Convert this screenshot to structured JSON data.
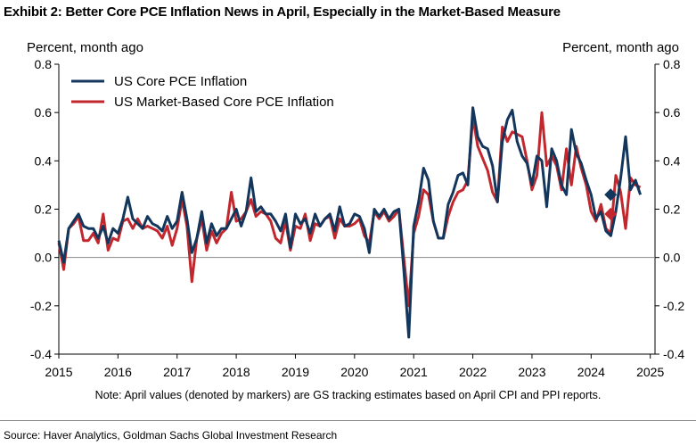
{
  "title": "Exhibit 2: Better Core PCE Inflation News in April, Especially in the Market-Based Measure",
  "note": "Note: April values (denoted by markers) are GS tracking estimates based on April CPI and PPI reports.",
  "source": "Source: Haver Analytics, Goldman Sachs Global Investment Research",
  "chart_data": {
    "type": "line",
    "y_axis_left_label": "Percent, month ago",
    "y_axis_right_label": "Percent, month ago",
    "ylim": [
      -0.4,
      0.8
    ],
    "yticks": [
      "0.8",
      "0.6",
      "0.4",
      "0.2",
      "0.0",
      "-0.2",
      "-0.4"
    ],
    "xlim": [
      2015,
      2025.08
    ],
    "xticks": [
      "2015",
      "2016",
      "2017",
      "2018",
      "2019",
      "2020",
      "2021",
      "2022",
      "2023",
      "2024",
      "2025"
    ],
    "grid": false,
    "legend_position": "top-left",
    "series": [
      {
        "name": "US Core PCE Inflation",
        "color": "#13365c",
        "x_start": 2015.0,
        "step_years": 0.08333,
        "values": [
          0.07,
          -0.02,
          0.12,
          0.15,
          0.18,
          0.13,
          0.12,
          0.12,
          0.08,
          0.13,
          0.06,
          0.12,
          0.1,
          0.16,
          0.25,
          0.16,
          0.14,
          0.12,
          0.17,
          0.14,
          0.13,
          0.11,
          0.17,
          0.12,
          0.15,
          0.27,
          0.16,
          0.02,
          0.08,
          0.19,
          0.06,
          0.14,
          0.09,
          0.12,
          0.12,
          0.16,
          0.2,
          0.13,
          0.19,
          0.33,
          0.19,
          0.21,
          0.18,
          0.18,
          0.15,
          0.11,
          0.18,
          0.04,
          0.18,
          0.14,
          0.16,
          0.1,
          0.18,
          0.13,
          0.16,
          0.18,
          0.11,
          0.21,
          0.13,
          0.14,
          0.18,
          0.17,
          0.12,
          0.02,
          0.2,
          0.17,
          0.2,
          0.16,
          0.19,
          0.2,
          -0.05,
          -0.33,
          0.13,
          0.23,
          0.37,
          0.32,
          0.15,
          0.08,
          0.08,
          0.22,
          0.27,
          0.34,
          0.35,
          0.3,
          0.62,
          0.5,
          0.46,
          0.45,
          0.38,
          0.23,
          0.48,
          0.57,
          0.61,
          0.48,
          0.42,
          0.39,
          0.3,
          0.42,
          0.4,
          0.21,
          0.45,
          0.4,
          0.3,
          0.26,
          0.53,
          0.43,
          0.39,
          0.32,
          0.26,
          0.16,
          0.19,
          0.11,
          0.09,
          0.19,
          0.33,
          0.5,
          0.28,
          0.32,
          0.26
        ],
        "markers": [
          {
            "x": 2024.33,
            "y": 0.26
          }
        ]
      },
      {
        "name": "US Market-Based Core PCE Inflation",
        "color": "#c1272d",
        "x_start": 2015.0,
        "step_years": 0.08333,
        "values": [
          0.06,
          -0.05,
          0.12,
          0.14,
          0.17,
          0.07,
          0.07,
          0.1,
          0.06,
          0.18,
          0.03,
          0.08,
          0.07,
          0.15,
          0.16,
          0.12,
          0.16,
          0.12,
          0.13,
          0.12,
          0.11,
          0.08,
          0.13,
          0.05,
          0.12,
          0.24,
          0.13,
          -0.1,
          0.08,
          0.16,
          0.03,
          0.11,
          0.06,
          0.1,
          0.12,
          0.27,
          0.15,
          0.16,
          0.19,
          0.24,
          0.17,
          0.19,
          0.18,
          0.15,
          0.08,
          0.06,
          0.15,
          0.03,
          0.13,
          0.12,
          0.18,
          0.07,
          0.14,
          0.13,
          0.16,
          0.17,
          0.08,
          0.16,
          0.13,
          0.13,
          0.14,
          0.16,
          0.09,
          0.06,
          0.19,
          0.16,
          0.19,
          0.15,
          0.17,
          0.2,
          0.0,
          -0.2,
          0.1,
          0.17,
          0.28,
          0.26,
          0.15,
          0.08,
          0.08,
          0.17,
          0.23,
          0.27,
          0.28,
          0.32,
          0.58,
          0.46,
          0.41,
          0.36,
          0.27,
          0.23,
          0.54,
          0.48,
          0.52,
          0.51,
          0.5,
          0.4,
          0.28,
          0.34,
          0.6,
          0.38,
          0.42,
          0.38,
          0.28,
          0.45,
          0.3,
          0.46,
          0.37,
          0.3,
          0.19,
          0.15,
          0.22,
          0.12,
          0.1,
          0.34,
          0.27,
          0.12,
          0.33,
          0.3,
          0.29
        ],
        "markers": [
          {
            "x": 2024.33,
            "y": 0.18
          }
        ]
      }
    ]
  }
}
